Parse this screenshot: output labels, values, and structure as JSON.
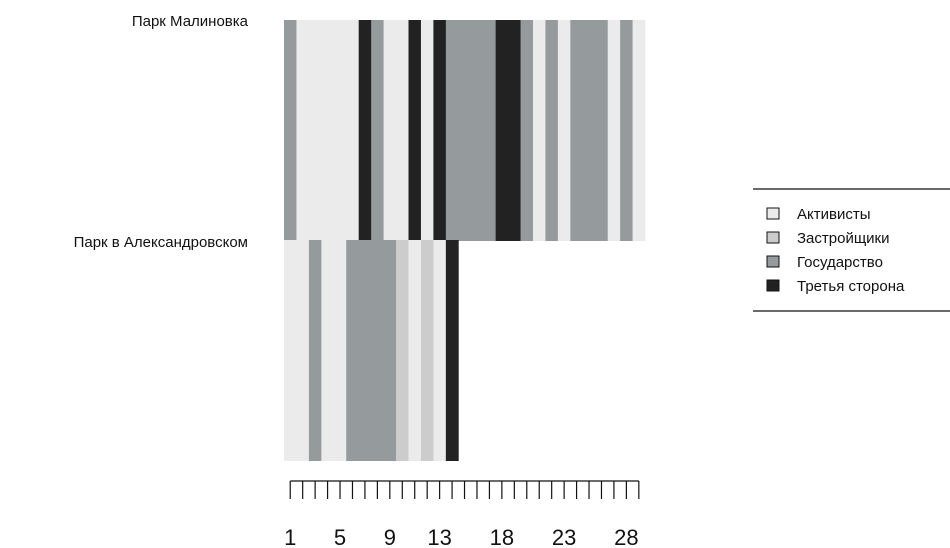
{
  "chart_data": {
    "type": "heatmap",
    "title": "",
    "xlabel": "",
    "ylabel": "",
    "rows": [
      {
        "label": "Парк Малиновка",
        "cells": [
          "Государство",
          "Активисты",
          "Активисты",
          "Активисты",
          "Активисты",
          "Активисты",
          "Третья сторона",
          "Государство",
          "Активисты",
          "Активисты",
          "Третья сторона",
          "Активисты",
          "Третья сторона",
          "Государство",
          "Государство",
          "Государство",
          "Государство",
          "Третья сторона",
          "Третья сторона",
          "Государство",
          "Активисты",
          "Государство",
          "Активисты",
          "Государство",
          "Государство",
          "Государство",
          "Активисты",
          "Государство",
          "Активисты"
        ]
      },
      {
        "label": "Парк в Александровском",
        "cells": [
          "Активисты",
          "Активисты",
          "Государство",
          "Активисты",
          "Активисты",
          "Государство",
          "Государство",
          "Государство",
          "Государство",
          "Застройщики",
          "Активисты",
          "Застройщики",
          "Активисты",
          "Третья сторона"
        ]
      }
    ],
    "x_ticks": [
      "1",
      "5",
      "9",
      "13",
      "18",
      "23",
      "28"
    ],
    "n_positions": 29,
    "legend": {
      "placement": "right",
      "items": [
        {
          "label": "Активисты",
          "color": "#ebebeb"
        },
        {
          "label": "Застройщики",
          "color": "#cccccc"
        },
        {
          "label": "Государство",
          "color": "#959a9c"
        },
        {
          "label": "Третья сторона",
          "color": "#222222"
        }
      ]
    }
  }
}
